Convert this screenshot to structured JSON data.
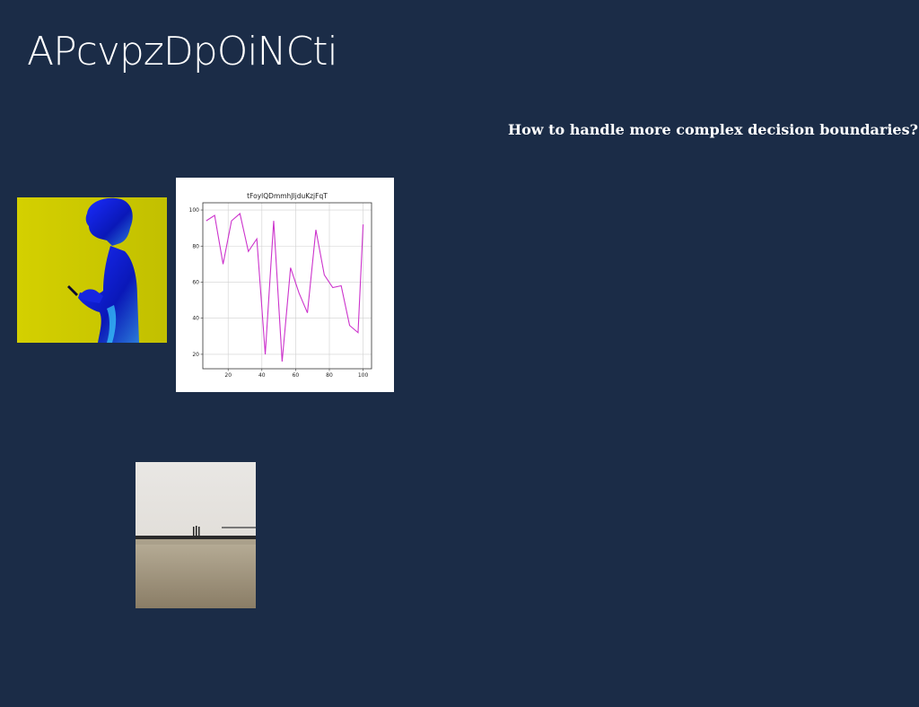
{
  "slide": {
    "title": "APcvpzDpOiNCti",
    "question": "How to handle more complex decision boundaries?"
  },
  "images": {
    "silhouette_photo": "person-silhouette-photo",
    "beach_photo": "beach-landscape-photo"
  },
  "colors": {
    "background": "#1b2c47",
    "text": "#ffffff",
    "line_series": "#cc33cc",
    "photo_yellow": "#cfcf00",
    "photo_blue": "#1020d0"
  },
  "chart_data": {
    "type": "line",
    "title": "tFoylQDmmhJljduKzjFqT",
    "xlabel": "",
    "ylabel": "",
    "x": [
      7,
      12,
      17,
      22,
      27,
      32,
      37,
      42,
      47,
      52,
      57,
      62,
      67,
      72,
      77,
      82,
      87,
      92,
      97,
      100
    ],
    "series": [
      {
        "values": [
          94,
          97,
          70,
          94,
          98,
          77,
          84,
          20,
          94,
          16,
          68,
          54,
          43,
          89,
          64,
          57,
          58,
          36,
          32,
          92
        ]
      }
    ],
    "xlim": [
      5,
      105
    ],
    "ylim": [
      12,
      104
    ],
    "xticks": [
      20,
      40,
      60,
      80,
      100
    ],
    "yticks": [
      20,
      40,
      60,
      80,
      100
    ],
    "grid": true
  }
}
